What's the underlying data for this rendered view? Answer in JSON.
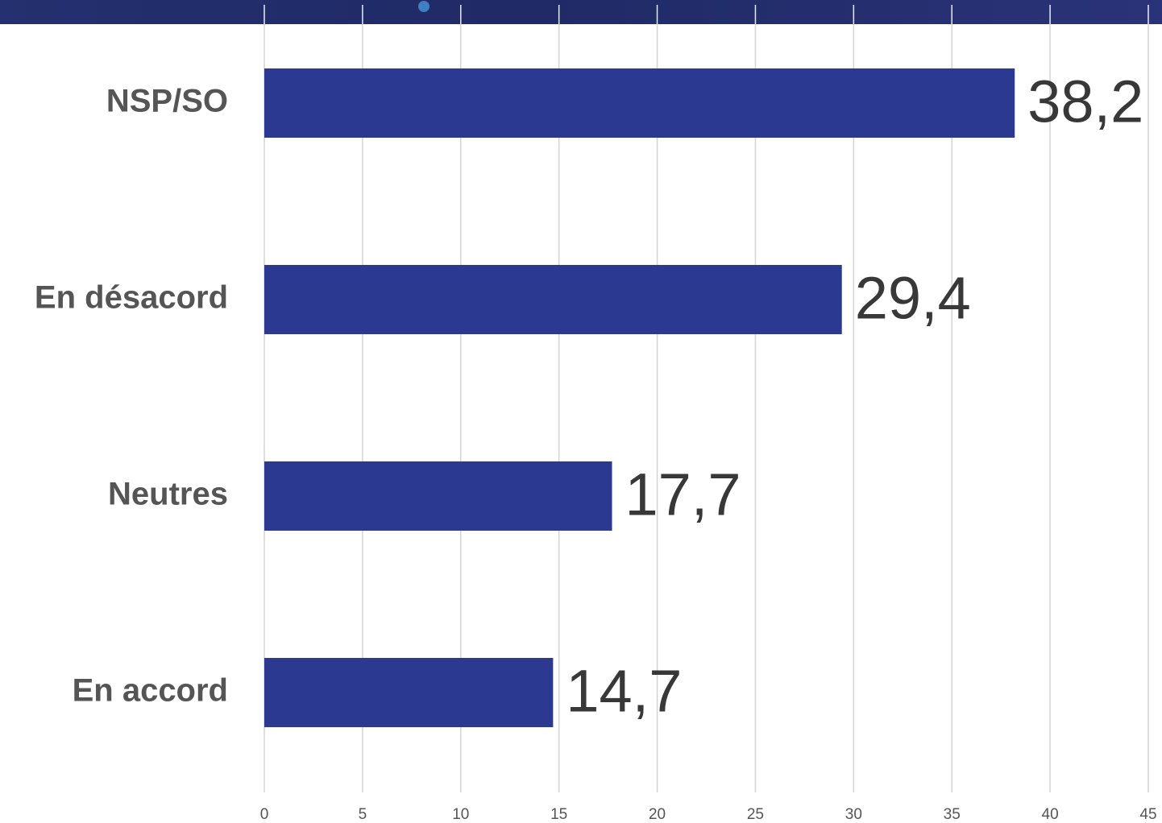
{
  "chart_data": {
    "type": "barh",
    "categories": [
      "NSP/SO",
      "En désacord",
      "Neutres",
      "En accord"
    ],
    "values": [
      38.2,
      29.4,
      17.7,
      14.7
    ],
    "value_labels": [
      "38,2",
      "29,4",
      "17,7",
      "14,7"
    ],
    "color": "#2b3990",
    "xlim": [
      0,
      45
    ],
    "xticks": [
      0,
      5,
      10,
      15,
      20,
      25,
      30,
      35,
      40,
      45
    ],
    "grid": true
  }
}
